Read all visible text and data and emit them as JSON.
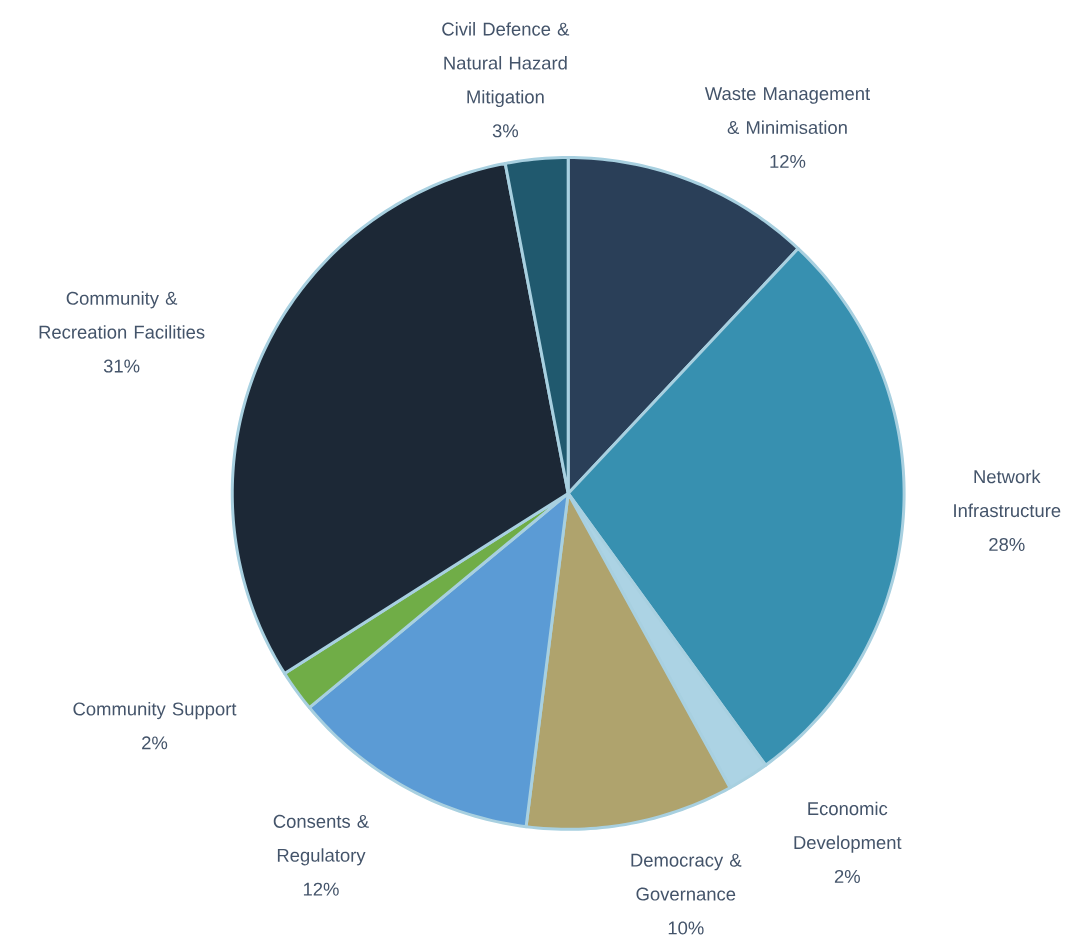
{
  "chart_data": {
    "type": "pie",
    "categories": [
      "Waste Management & Minimisation",
      "Network Infrastructure",
      "Economic Development",
      "Democracy & Governance",
      "Consents & Regulatory",
      "Community Support",
      "Community & Recreation Facilities",
      "Civil Defence & Natural Hazard Mitigation"
    ],
    "values": [
      12,
      28,
      2,
      10,
      12,
      2,
      31,
      3
    ],
    "value_labels": [
      "12%",
      "28%",
      "2%",
      "10%",
      "12%",
      "2%",
      "31%",
      "3%"
    ],
    "colors": [
      "#2a3f58",
      "#3790b0",
      "#acd3e4",
      "#afa36d",
      "#5b9bd5",
      "#70ad47",
      "#1c2836",
      "#20596e"
    ]
  }
}
